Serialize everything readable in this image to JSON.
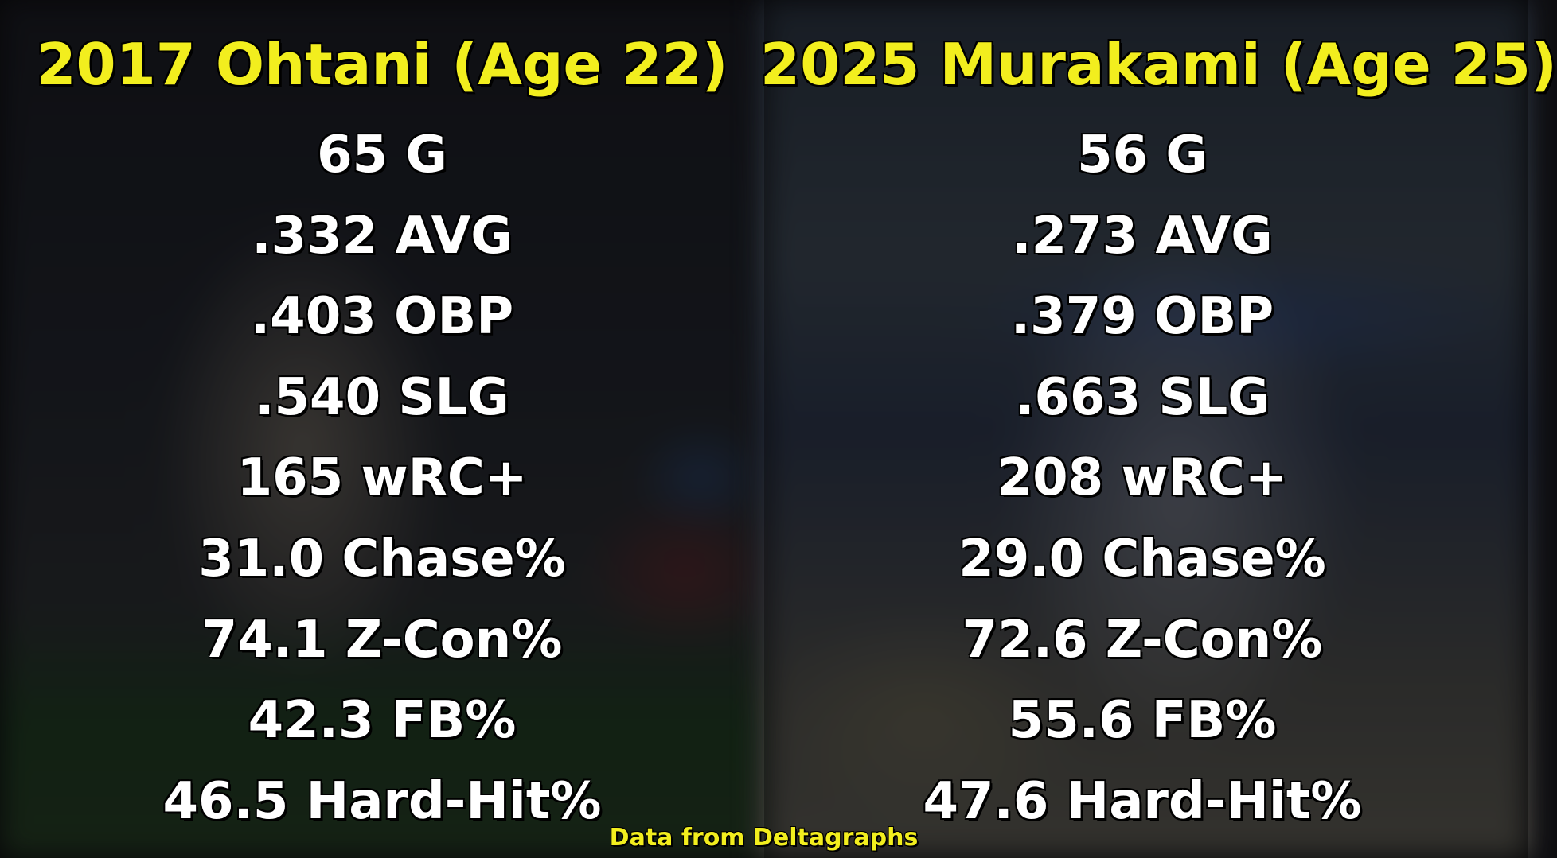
{
  "left": {
    "title": "2017 Ohtani (Age 22)",
    "stats": [
      "65 G",
      ".332 AVG",
      ".403 OBP",
      ".540 SLG",
      "165 wRC+",
      "31.0 Chase%",
      "74.1 Z-Con%",
      "42.3 FB%",
      "46.5 Hard-Hit%"
    ]
  },
  "right": {
    "title": "2025 Murakami (Age 25)",
    "stats": [
      "56 G",
      ".273 AVG",
      ".379 OBP",
      ".663 SLG",
      "208 wRC+",
      "29.0 Chase%",
      "72.6 Z-Con%",
      "55.6 FB%",
      "47.6 Hard-Hit%"
    ]
  },
  "credit": "Data from Deltagraphs",
  "colors": {
    "title": "#f2ee1e",
    "stat": "#ffffff"
  }
}
